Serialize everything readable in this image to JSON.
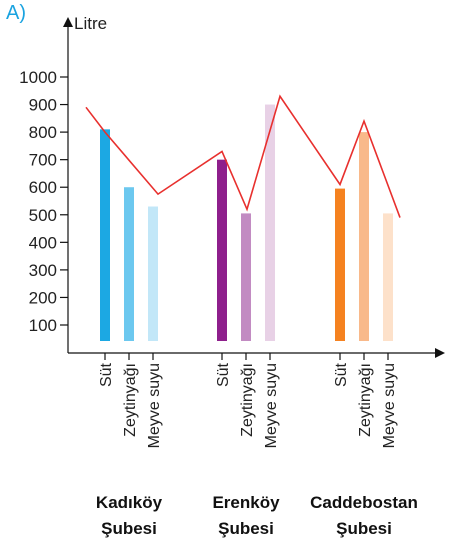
{
  "panel_label": "A)",
  "chart_data": {
    "type": "bar",
    "ylabel": "Litre",
    "xlabel": "",
    "ylim": [
      0,
      1000
    ],
    "yticks": [
      100,
      200,
      300,
      400,
      500,
      600,
      700,
      800,
      900,
      1000
    ],
    "groups": [
      {
        "name_line1": "Kadıköy",
        "name_line2": "Şubesi",
        "bars": [
          {
            "category": "Süt",
            "value": 810,
            "color": "#1ca8e3"
          },
          {
            "category": "Zeytinyağı",
            "value": 600,
            "color": "#6cc8ef"
          },
          {
            "category": "Meyve suyu",
            "value": 530,
            "color": "#c2e7f8"
          }
        ]
      },
      {
        "name_line1": "Erenköy",
        "name_line2": "Şubesi",
        "bars": [
          {
            "category": "Süt",
            "value": 700,
            "color": "#8e1f8c"
          },
          {
            "category": "Zeytinyağı",
            "value": 505,
            "color": "#c28bc2"
          },
          {
            "category": "Meyve suyu",
            "value": 900,
            "color": "#e8d1e6"
          }
        ]
      },
      {
        "name_line1": "Caddebostan",
        "name_line2": "Şubesi",
        "bars": [
          {
            "category": "Süt",
            "value": 595,
            "color": "#f58220"
          },
          {
            "category": "Zeytinyağı",
            "value": 800,
            "color": "#f9b98a"
          },
          {
            "category": "Meyve suyu",
            "value": 505,
            "color": "#fde1ca"
          }
        ]
      }
    ],
    "line_series": {
      "color": "#e8302e",
      "values": [
        890,
        800,
        575,
        730,
        520,
        930,
        610,
        840,
        490
      ]
    }
  }
}
